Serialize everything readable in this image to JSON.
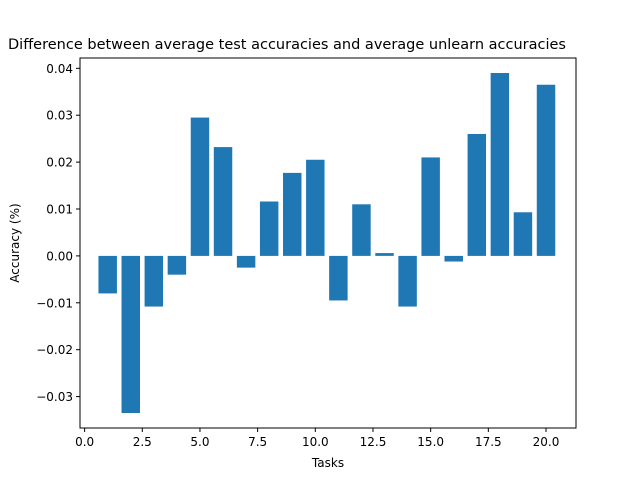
{
  "chart_data": {
    "type": "bar",
    "title": "Difference between average test accuracies and average unlearn accuracies",
    "xlabel": "Tasks",
    "ylabel": "Accuracy (%)",
    "x": [
      1,
      2,
      3,
      4,
      5,
      6,
      7,
      8,
      9,
      10,
      11,
      12,
      13,
      14,
      15,
      16,
      17,
      18,
      19,
      20
    ],
    "values": [
      -0.008,
      -0.0335,
      -0.0108,
      -0.004,
      0.0295,
      0.0232,
      -0.0025,
      0.0116,
      0.0177,
      0.0205,
      -0.0095,
      0.011,
      0.0006,
      -0.0108,
      0.021,
      -0.0012,
      0.026,
      0.039,
      0.0093,
      0.0365
    ],
    "xlim": [
      -0.2,
      21.3
    ],
    "ylim": [
      -0.0367,
      0.0422
    ],
    "xticks": [
      0.0,
      2.5,
      5.0,
      7.5,
      10.0,
      12.5,
      15.0,
      17.5,
      20.0
    ],
    "xtick_labels": [
      "0.0",
      "2.5",
      "5.0",
      "7.5",
      "10.0",
      "12.5",
      "15.0",
      "17.5",
      "20.0"
    ],
    "yticks": [
      -0.03,
      -0.02,
      -0.01,
      0.0,
      0.01,
      0.02,
      0.03,
      0.04
    ],
    "ytick_labels": [
      "−0.03",
      "−0.02",
      "−0.01",
      "0.00",
      "0.01",
      "0.02",
      "0.03",
      "0.04"
    ],
    "bar_color": "#1f77b4",
    "grid": false
  }
}
